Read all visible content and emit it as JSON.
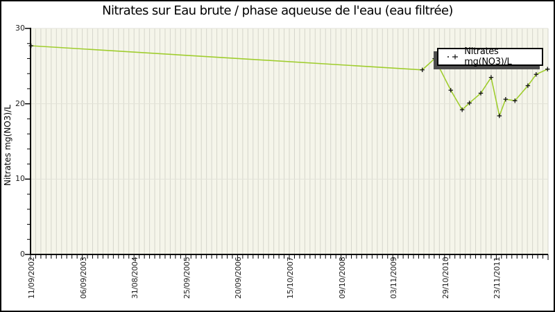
{
  "window": {
    "background": "#ffffff",
    "frame_border_color": "#000000"
  },
  "chart_data": {
    "type": "line",
    "title": "Nitrates sur Eau brute / phase aqueuse de l'eau (eau filtrée)",
    "ylabel": "Nitrates mg(NO3)/L",
    "xlabel": "",
    "ylim": [
      0,
      30
    ],
    "y_major_ticks": [
      0,
      10,
      20,
      30
    ],
    "y_minor_step": 2,
    "x_tick_labels": [
      "11/09/2002",
      "06/09/2003",
      "31/08/2004",
      "25/09/2005",
      "20/09/2006",
      "15/10/2007",
      "09/10/2008",
      "03/11/2009",
      "29/10/2010",
      "23/11/2011"
    ],
    "x_minor_divisions_per_label": 10,
    "grid": {
      "vertical_minor": true,
      "horizontal_major": true
    },
    "colors": {
      "plot_background": "#f5f5ea",
      "vertical_grid": "#d5d5cb",
      "horizontal_grid": "#e2e2d8",
      "axis": "#000000",
      "tick_text": "#222222",
      "line": "#9fcd2d",
      "marker": "#111111",
      "legend_shadow": "#4d4d4d"
    },
    "legend": {
      "label": "Nitrates mg(NO3)/L",
      "position": "top-right",
      "marker": "dot-plus"
    },
    "series": [
      {
        "name": "Nitrates mg(NO3)/L",
        "marker": "plus",
        "points": [
          {
            "x_frac": 0.001,
            "value": 27.7
          },
          {
            "x_frac": 0.757,
            "value": 24.5
          },
          {
            "x_frac": 0.781,
            "value": 26.0
          },
          {
            "x_frac": 0.812,
            "value": 21.8
          },
          {
            "x_frac": 0.834,
            "value": 19.2
          },
          {
            "x_frac": 0.848,
            "value": 20.1
          },
          {
            "x_frac": 0.87,
            "value": 21.4
          },
          {
            "x_frac": 0.89,
            "value": 23.5
          },
          {
            "x_frac": 0.906,
            "value": 18.4
          },
          {
            "x_frac": 0.918,
            "value": 20.6
          },
          {
            "x_frac": 0.936,
            "value": 20.4
          },
          {
            "x_frac": 0.961,
            "value": 22.4
          },
          {
            "x_frac": 0.977,
            "value": 23.9
          },
          {
            "x_frac": 0.999,
            "value": 24.6
          }
        ]
      }
    ]
  }
}
